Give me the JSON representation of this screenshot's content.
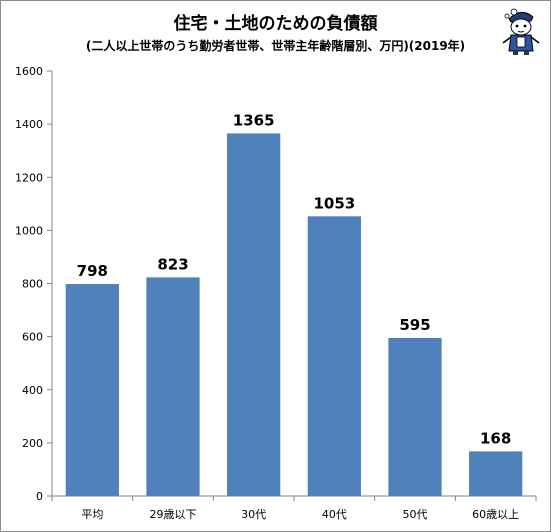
{
  "chart_data": {
    "type": "bar",
    "title": "住宅・土地のための負債額",
    "subtitle": "(二人以上世帯のうち勤労者世帯、世帯主年齢階層別、万円)(2019年)",
    "categories": [
      "平均",
      "29歳以下",
      "30代",
      "40代",
      "50代",
      "60歳以上"
    ],
    "values": [
      798,
      823,
      1365,
      1053,
      595,
      168
    ],
    "data_labels": [
      "798",
      "823",
      "1365",
      "1053",
      "595",
      "168"
    ],
    "xlabel": "",
    "ylabel": "",
    "ylim": [
      0,
      1600
    ],
    "yticks": [
      0,
      200,
      400,
      600,
      800,
      1000,
      1200,
      1400,
      1600
    ],
    "grid": false,
    "legend": "none",
    "bar_color": "#4f81bd",
    "axis_color": "#868686"
  },
  "mascot": {
    "icon": "mascot-character-icon"
  }
}
